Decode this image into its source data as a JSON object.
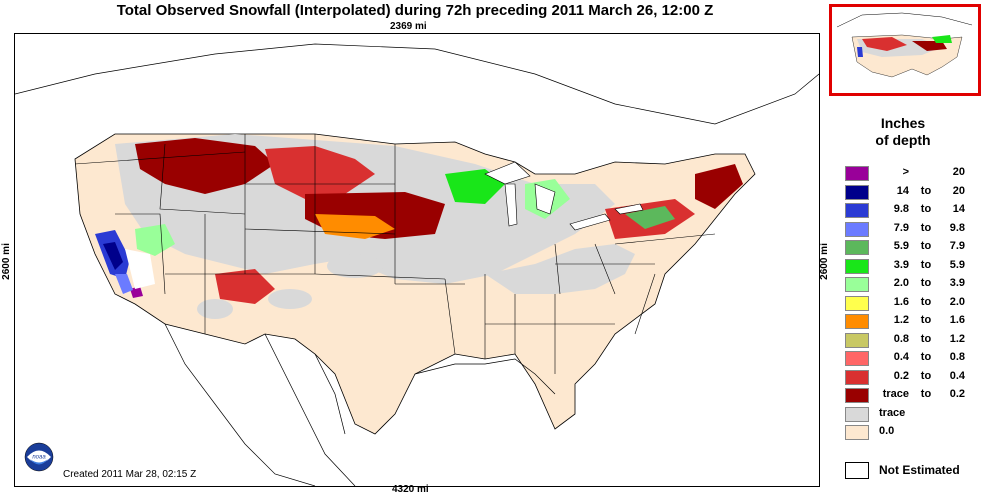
{
  "title": "Total Observed Snowfall (Interpolated) during 72h preceding 2011 March 26, 12:00 Z",
  "dimensions": {
    "top": "2369 mi",
    "bottom": "4320 mi",
    "left": "2600 mi",
    "right": "2600 mi"
  },
  "created": "Created 2011 Mar 28, 02:15 Z",
  "logo_label": "noaa",
  "legend": {
    "heading_line1": "Inches",
    "heading_line2": "of depth",
    "items": [
      {
        "lo": ">",
        "to": "",
        "hi": "20",
        "color": "#990099"
      },
      {
        "lo": "14",
        "to": "to",
        "hi": "20",
        "color": "#00008b"
      },
      {
        "lo": "9.8",
        "to": "to",
        "hi": "14",
        "color": "#2b3bd4"
      },
      {
        "lo": "7.9",
        "to": "to",
        "hi": "9.8",
        "color": "#6b7bff"
      },
      {
        "lo": "5.9",
        "to": "to",
        "hi": "7.9",
        "color": "#5cb85c"
      },
      {
        "lo": "3.9",
        "to": "to",
        "hi": "5.9",
        "color": "#19e619"
      },
      {
        "lo": "2.0",
        "to": "to",
        "hi": "3.9",
        "color": "#99ff99"
      },
      {
        "lo": "1.6",
        "to": "to",
        "hi": "2.0",
        "color": "#ffff4d"
      },
      {
        "lo": "1.2",
        "to": "to",
        "hi": "1.6",
        "color": "#ff8c00"
      },
      {
        "lo": "0.8",
        "to": "to",
        "hi": "1.2",
        "color": "#c8c864"
      },
      {
        "lo": "0.4",
        "to": "to",
        "hi": "0.8",
        "color": "#ff6666"
      },
      {
        "lo": "0.2",
        "to": "to",
        "hi": "0.4",
        "color": "#d93030"
      },
      {
        "lo": "trace",
        "to": "to",
        "hi": "0.2",
        "color": "#990000"
      },
      {
        "single": "trace",
        "color": "#d9d9d9"
      },
      {
        "single": "0.0",
        "color": "#fde8d0"
      }
    ],
    "not_estimated": "Not Estimated"
  },
  "colors": {
    "no_snow": "#fde8d0",
    "trace": "#d9d9d9",
    "frame": "#000000",
    "inset_border": "#e00000"
  }
}
